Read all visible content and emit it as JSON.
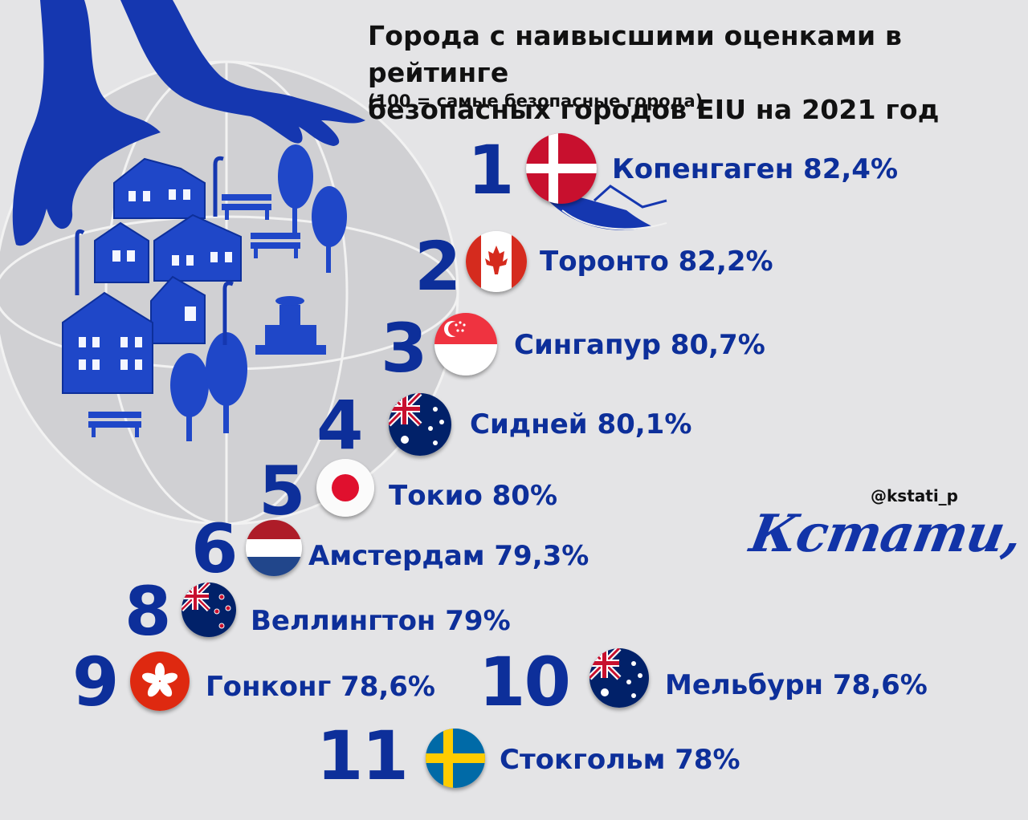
{
  "header": {
    "title_line1": "Города с наивысшими оценками в рейтинге",
    "title_line2": "безопасных городов EIU на 2021 год",
    "subtitle": "(100 = самые безопасные города)"
  },
  "ranking": [
    {
      "rank": "1",
      "city": "Копенгаген",
      "score": "82,4%",
      "label": "Копенгаген 82,4%",
      "flag_icon": "denmark-flag"
    },
    {
      "rank": "2",
      "city": "Торонто",
      "score": "82,2%",
      "label": "Торонто 82,2%",
      "flag_icon": "canada-flag"
    },
    {
      "rank": "3",
      "city": "Сингапур",
      "score": "80,7%",
      "label": "Сингапур 80,7%",
      "flag_icon": "singapore-flag"
    },
    {
      "rank": "4",
      "city": "Сидней",
      "score": "80,1%",
      "label": "Сидней 80,1%",
      "flag_icon": "australia-flag"
    },
    {
      "rank": "5",
      "city": "Токио",
      "score": "80%",
      "label": "Токио 80%",
      "flag_icon": "japan-flag"
    },
    {
      "rank": "6",
      "city": "Амстердам",
      "score": "79,3%",
      "label": "Амстердам 79,3%",
      "flag_icon": "netherlands-flag"
    },
    {
      "rank": "8",
      "city": "Веллингтон",
      "score": "79%",
      "label": "Веллингтон 79%",
      "flag_icon": "new-zealand-flag"
    },
    {
      "rank": "9",
      "city": "Гонконг",
      "score": "78,6%",
      "label": "Гонконг 78,6%",
      "flag_icon": "hong-kong-flag"
    },
    {
      "rank": "10",
      "city": "Мельбурн",
      "score": "78,6%",
      "label": "Мельбурн 78,6%",
      "flag_icon": "australia-flag"
    },
    {
      "rank": "11",
      "city": "Стокгольм",
      "score": "78%",
      "label": "Стокгольм 78%",
      "flag_icon": "sweden-flag"
    }
  ],
  "branding": {
    "handle": "@kstati_p",
    "logo": "Кстати,"
  },
  "colors": {
    "background": "#e4e4e6",
    "accent_blue": "#0d2f9a",
    "illustration_blue": "#1f47c8",
    "globe": "#d0d0d3"
  }
}
